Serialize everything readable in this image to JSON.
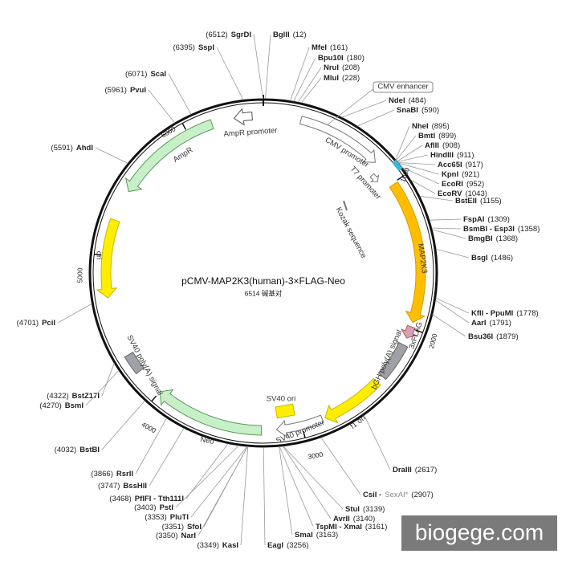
{
  "title": "pCMV-MAP2K3(human)-3×FLAG-Neo",
  "length": {
    "value": 6514,
    "label": "6514 碱基对"
  },
  "scale_ticks": [
    1000,
    2000,
    3000,
    4000,
    5000,
    6000
  ],
  "sites": [
    {
      "name": "SgrDI",
      "position": {
        "value": 6512,
        "label": "(6512)"
      }
    },
    {
      "name": "BglII",
      "position": {
        "value": 12,
        "label": "(12)"
      }
    },
    {
      "name": "SspI",
      "position": {
        "value": 6395,
        "label": "(6395)"
      }
    },
    {
      "name": "MfeI",
      "position": {
        "value": 161,
        "label": "(161)"
      }
    },
    {
      "name": "Bpu10I",
      "position": {
        "value": 180,
        "label": "(180)"
      }
    },
    {
      "name": "NruI",
      "position": {
        "value": 208,
        "label": "(208)"
      }
    },
    {
      "name": "MluI",
      "position": {
        "value": 228,
        "label": "(228)"
      }
    },
    {
      "name": "ScaI",
      "position": {
        "value": 6071,
        "label": "(6071)"
      }
    },
    {
      "name": "PvuI",
      "position": {
        "value": 5961,
        "label": "(5961)"
      }
    },
    {
      "name": "NdeI",
      "position": {
        "value": 484,
        "label": "(484)"
      }
    },
    {
      "name": "SnaBI",
      "position": {
        "value": 590,
        "label": "(590)"
      }
    },
    {
      "name": "NheI",
      "position": {
        "value": 895,
        "label": "(895)"
      }
    },
    {
      "name": "BmtI",
      "position": {
        "value": 899,
        "label": "(899)"
      }
    },
    {
      "name": "AflII",
      "position": {
        "value": 908,
        "label": "(908)"
      }
    },
    {
      "name": "HindIII",
      "position": {
        "value": 911,
        "label": "(911)"
      }
    },
    {
      "name": "Acc65I",
      "position": {
        "value": 917,
        "label": "(917)"
      }
    },
    {
      "name": "KpnI",
      "position": {
        "value": 921,
        "label": "(921)"
      }
    },
    {
      "name": "EcoRI",
      "position": {
        "value": 952,
        "label": "(952)"
      }
    },
    {
      "name": "EcoRV",
      "position": {
        "value": 1043,
        "label": "(1043)"
      }
    },
    {
      "name": "AhdI",
      "position": {
        "value": 5591,
        "label": "(5591)"
      }
    },
    {
      "name": "BstEII",
      "position": {
        "value": 1155,
        "label": "(1155)"
      }
    },
    {
      "name": "FspAI",
      "position": {
        "value": 1309,
        "label": "(1309)"
      }
    },
    {
      "name": "BsmBI - Esp3I",
      "position": {
        "value": 1358,
        "label": "(1358)"
      }
    },
    {
      "name": "BmgBI",
      "position": {
        "value": 1368,
        "label": "(1368)"
      }
    },
    {
      "name": "BsgI",
      "position": {
        "value": 1486,
        "label": "(1486)"
      }
    },
    {
      "name": "KflI - PpuMI",
      "position": {
        "value": 1778,
        "label": "(1778)"
      }
    },
    {
      "name": "AarI",
      "position": {
        "value": 1791,
        "label": "(1791)"
      }
    },
    {
      "name": "PciI",
      "position": {
        "value": 4701,
        "label": "(4701)"
      }
    },
    {
      "name": "Bsu36I",
      "position": {
        "value": 1879,
        "label": "(1879)"
      }
    },
    {
      "name": "BstZ17I",
      "position": {
        "value": 4322,
        "label": "(4322)"
      }
    },
    {
      "name": "BsmI",
      "position": {
        "value": 4270,
        "label": "(4270)"
      }
    },
    {
      "name": "BstBI",
      "position": {
        "value": 4032,
        "label": "(4032)"
      }
    },
    {
      "name": "DraIII",
      "position": {
        "value": 2617,
        "label": "(2617)"
      }
    },
    {
      "name": "RsrII",
      "position": {
        "value": 3866,
        "label": "(3866)"
      }
    },
    {
      "name": "BssHII",
      "position": {
        "value": 3747,
        "label": "(3747)"
      }
    },
    {
      "name": "CsiI -",
      "alt_name": "SexAI*",
      "position": {
        "value": 2907,
        "label": "(2907)"
      }
    },
    {
      "name": "PflFI - Tth111I",
      "position": {
        "value": 3468,
        "label": "(3468)"
      }
    },
    {
      "name": "PstI",
      "position": {
        "value": 3403,
        "label": "(3403)"
      }
    },
    {
      "name": "StuI",
      "position": {
        "value": 3139,
        "label": "(3139)"
      }
    },
    {
      "name": "PluTI",
      "position": {
        "value": 3353,
        "label": "(3353)"
      }
    },
    {
      "name": "AvrII",
      "position": {
        "value": 3140,
        "label": "(3140)"
      }
    },
    {
      "name": "SfoI",
      "position": {
        "value": 3351,
        "label": "(3351)"
      }
    },
    {
      "name": "TspMI - XmaI",
      "position": {
        "value": 3161,
        "label": "(3161)"
      }
    },
    {
      "name": "NarI",
      "position": {
        "value": 3350,
        "label": "(3350)"
      }
    },
    {
      "name": "SmaI",
      "position": {
        "value": 3163,
        "label": "(3163)"
      }
    },
    {
      "name": "KasI",
      "position": {
        "value": 3349,
        "label": "(3349)"
      }
    },
    {
      "name": "EagI",
      "position": {
        "value": 3256,
        "label": "(3256)"
      }
    }
  ],
  "features": [
    "CMV enhancer",
    "CMV promoter",
    "T7 promoter",
    "Kozak sequence",
    "MAP2K3",
    "3xFLAG",
    "bGH poly(A) signal",
    "f1 ori",
    "SV40 promoter",
    "SV40 ori",
    "Neo",
    "SV40 poly(A) signal",
    "ori",
    "AmpR",
    "AmpR promoter"
  ],
  "watermark": "biogege.com"
}
